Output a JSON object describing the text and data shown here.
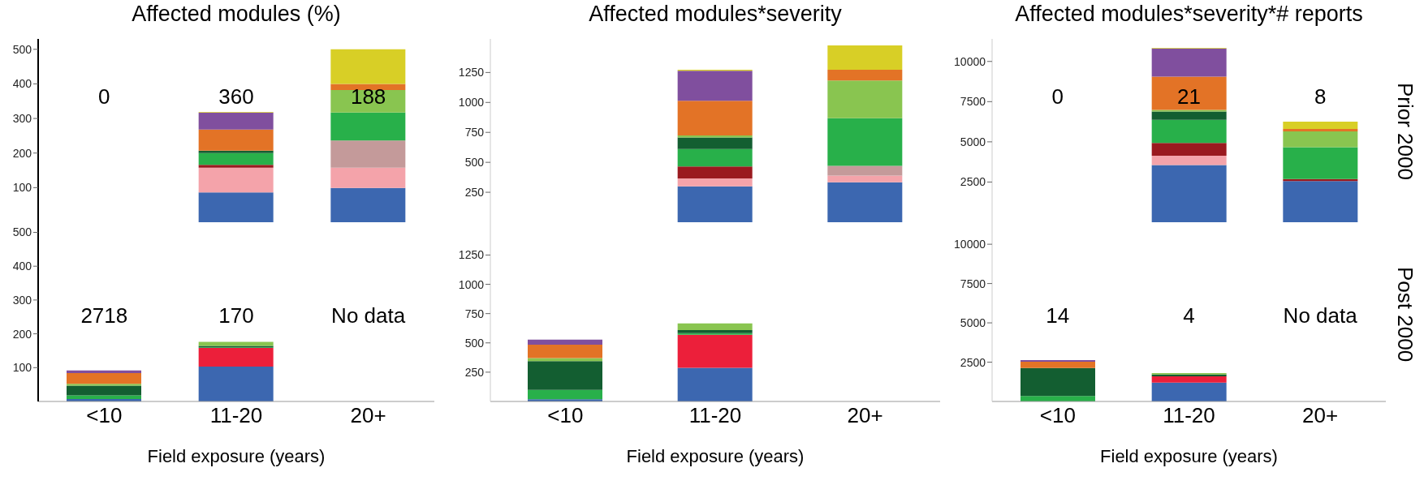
{
  "chart_data": [
    {
      "type": "bar",
      "stacked": true,
      "title": "Affected modules (%)",
      "categories": [
        "<10",
        "11-20",
        "20+"
      ],
      "ylim": [
        0,
        530
      ],
      "yticks": [
        100,
        200,
        300,
        400,
        500
      ],
      "tick_labels": "y",
      "legend": false,
      "annotations": [
        "0",
        "360",
        "188"
      ],
      "series": [
        {
          "color": "#3c67b0",
          "values": [
            null,
            86,
            99
          ]
        },
        {
          "color": "#f4a3aa",
          "values": [
            null,
            72,
            59
          ]
        },
        {
          "color": "#c49a9a",
          "values": [
            null,
            null,
            78
          ]
        },
        {
          "color": "#9a1a1f",
          "values": [
            null,
            8,
            null
          ]
        },
        {
          "color": "#28b04a",
          "values": [
            null,
            34,
            81
          ]
        },
        {
          "color": "#135e31",
          "values": [
            null,
            7,
            null
          ]
        },
        {
          "color": "#89c550",
          "values": [
            null,
            null,
            65
          ]
        },
        {
          "color": "#e37326",
          "values": [
            null,
            61,
            18
          ]
        },
        {
          "color": "#804f9e",
          "values": [
            null,
            49,
            null
          ]
        },
        {
          "color": "#d8cf26",
          "values": [
            null,
            2,
            100
          ]
        }
      ]
    },
    {
      "type": "bar",
      "stacked": true,
      "title": "Affected modules*severity",
      "categories": [
        "<10",
        "11-20",
        "20+"
      ],
      "ylim": [
        0,
        1530
      ],
      "yticks": [
        250,
        500,
        750,
        1000,
        1250
      ],
      "tick_labels": "y",
      "legend": false,
      "series": [
        {
          "color": "#3c67b0",
          "values": [
            null,
            300,
            333
          ]
        },
        {
          "color": "#f4a3aa",
          "values": [
            null,
            66,
            56
          ]
        },
        {
          "color": "#c49a9a",
          "values": [
            null,
            null,
            82
          ]
        },
        {
          "color": "#9a1a1f",
          "values": [
            null,
            100,
            null
          ]
        },
        {
          "color": "#28b04a",
          "values": [
            null,
            145,
            397
          ]
        },
        {
          "color": "#135e31",
          "values": [
            null,
            96,
            null
          ]
        },
        {
          "color": "#89c550",
          "values": [
            null,
            18,
            315
          ]
        },
        {
          "color": "#e37326",
          "values": [
            null,
            288,
            89
          ]
        },
        {
          "color": "#804f9e",
          "values": [
            null,
            252,
            null
          ]
        },
        {
          "color": "#d8cf26",
          "values": [
            null,
            7,
            204
          ]
        }
      ]
    },
    {
      "type": "bar",
      "stacked": true,
      "title": "Affected modules*severity*# reports",
      "y2label": "Prior 2000",
      "categories": [
        "<10",
        "11-20",
        "20+"
      ],
      "ylim": [
        0,
        11400
      ],
      "yticks": [
        2500,
        5000,
        7500,
        10000
      ],
      "tick_labels": "y",
      "legend": false,
      "annotations": [
        "0",
        "21",
        "8"
      ],
      "series": [
        {
          "color": "#3c67b0",
          "values": [
            null,
            3550,
            2560
          ]
        },
        {
          "color": "#f4a3aa",
          "values": [
            null,
            580,
            null
          ]
        },
        {
          "color": "#9a1a1f",
          "values": [
            null,
            800,
            130
          ]
        },
        {
          "color": "#28b04a",
          "values": [
            null,
            1440,
            1970
          ]
        },
        {
          "color": "#135e31",
          "values": [
            null,
            510,
            null
          ]
        },
        {
          "color": "#89c550",
          "values": [
            null,
            110,
            990
          ]
        },
        {
          "color": "#e37326",
          "values": [
            null,
            2060,
            150
          ]
        },
        {
          "color": "#804f9e",
          "values": [
            null,
            1760,
            null
          ]
        },
        {
          "color": "#d8cf26",
          "values": [
            null,
            40,
            460
          ]
        }
      ]
    },
    {
      "type": "bar",
      "stacked": true,
      "xlabel": "Field exposure (years)",
      "categories": [
        "<10",
        "11-20",
        "20+"
      ],
      "ylim": [
        0,
        530
      ],
      "yticks": [
        100,
        200,
        300,
        400,
        500
      ],
      "legend": false,
      "annotations": [
        "2718",
        "170",
        "No data"
      ],
      "series": [
        {
          "color": "#3c67b0",
          "values": [
            7,
            103,
            null
          ]
        },
        {
          "color": "#ec1f3a",
          "values": [
            null,
            55,
            null
          ]
        },
        {
          "color": "#28b04a",
          "values": [
            11,
            2,
            null
          ]
        },
        {
          "color": "#135e31",
          "values": [
            29,
            4,
            null
          ]
        },
        {
          "color": "#89c550",
          "values": [
            5,
            12,
            null
          ]
        },
        {
          "color": "#e37326",
          "values": [
            32,
            null,
            null
          ]
        },
        {
          "color": "#804f9e",
          "values": [
            8,
            null,
            null
          ]
        }
      ]
    },
    {
      "type": "bar",
      "stacked": true,
      "xlabel": "Field exposure (years)",
      "categories": [
        "<10",
        "11-20",
        "20+"
      ],
      "ylim": [
        0,
        1530
      ],
      "yticks": [
        250,
        500,
        750,
        1000,
        1250
      ],
      "legend": false,
      "series": [
        {
          "color": "#3c67b0",
          "values": [
            19,
            288,
            null
          ]
        },
        {
          "color": "#ec1f3a",
          "values": [
            null,
            281,
            null
          ]
        },
        {
          "color": "#28b04a",
          "values": [
            80,
            15,
            null
          ]
        },
        {
          "color": "#135e31",
          "values": [
            246,
            26,
            null
          ]
        },
        {
          "color": "#89c550",
          "values": [
            25,
            56,
            null
          ]
        },
        {
          "color": "#e37326",
          "values": [
            115,
            null,
            null
          ]
        },
        {
          "color": "#804f9e",
          "values": [
            43,
            null,
            null
          ]
        }
      ]
    },
    {
      "type": "bar",
      "stacked": true,
      "xlabel": "Field exposure (years)",
      "y2label": "Post 2000",
      "categories": [
        "<10",
        "11-20",
        "20+"
      ],
      "ylim": [
        0,
        11400
      ],
      "yticks": [
        2500,
        5000,
        7500,
        10000
      ],
      "legend": false,
      "annotations": [
        "14",
        "4",
        "No data"
      ],
      "series": [
        {
          "color": "#3c67b0",
          "values": [
            null,
            1200,
            null
          ]
        },
        {
          "color": "#ec1f3a",
          "values": [
            null,
            400,
            null
          ]
        },
        {
          "color": "#28b04a",
          "values": [
            350,
            null,
            null
          ]
        },
        {
          "color": "#135e31",
          "values": [
            1780,
            110,
            null
          ]
        },
        {
          "color": "#89c550",
          "values": [
            null,
            100,
            null
          ]
        },
        {
          "color": "#e37326",
          "values": [
            400,
            null,
            null
          ]
        },
        {
          "color": "#804f9e",
          "values": [
            100,
            null,
            null
          ]
        }
      ]
    }
  ]
}
